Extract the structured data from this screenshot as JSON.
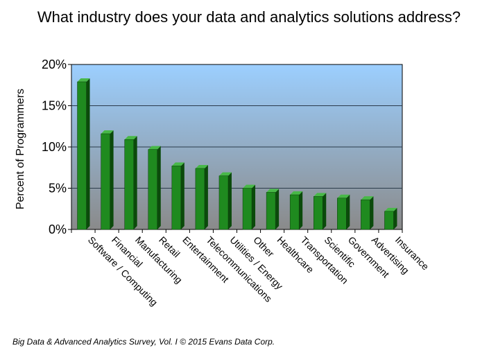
{
  "chart_data": {
    "type": "bar",
    "title": "What industry does your data and analytics solutions address?",
    "xlabel": "",
    "ylabel": "Percent of Programmers",
    "ylim": [
      0,
      20
    ],
    "yticks": [
      "0%",
      "5%",
      "10%",
      "15%",
      "20%"
    ],
    "ytick_values": [
      0,
      5,
      10,
      15,
      20
    ],
    "grid": true,
    "categories": [
      "Software / Computing",
      "Financial",
      "Manufacturing",
      "Retail",
      "Entertainment",
      "Telecommunications",
      "Utilities / Energy",
      "Other",
      "Healthcare",
      "Transportation",
      "Scientific",
      "Government",
      "Advertising",
      "Insurance"
    ],
    "values": [
      17.9,
      11.6,
      10.9,
      9.7,
      7.7,
      7.4,
      6.5,
      5.0,
      4.5,
      4.2,
      4.0,
      3.8,
      3.6,
      2.2
    ],
    "colors": {
      "bar_front": "#1f8a1f",
      "bar_side": "#0b4a0b",
      "bar_top": "#48b848",
      "bg_top": "#9ccfff",
      "bg_bottom": "#8a8a8a",
      "gridline": "#2a3a4a"
    }
  },
  "footer": {
    "text": "Big Data & Advanced Analytics Survey, Vol. I © 2015 Evans Data Corp."
  }
}
